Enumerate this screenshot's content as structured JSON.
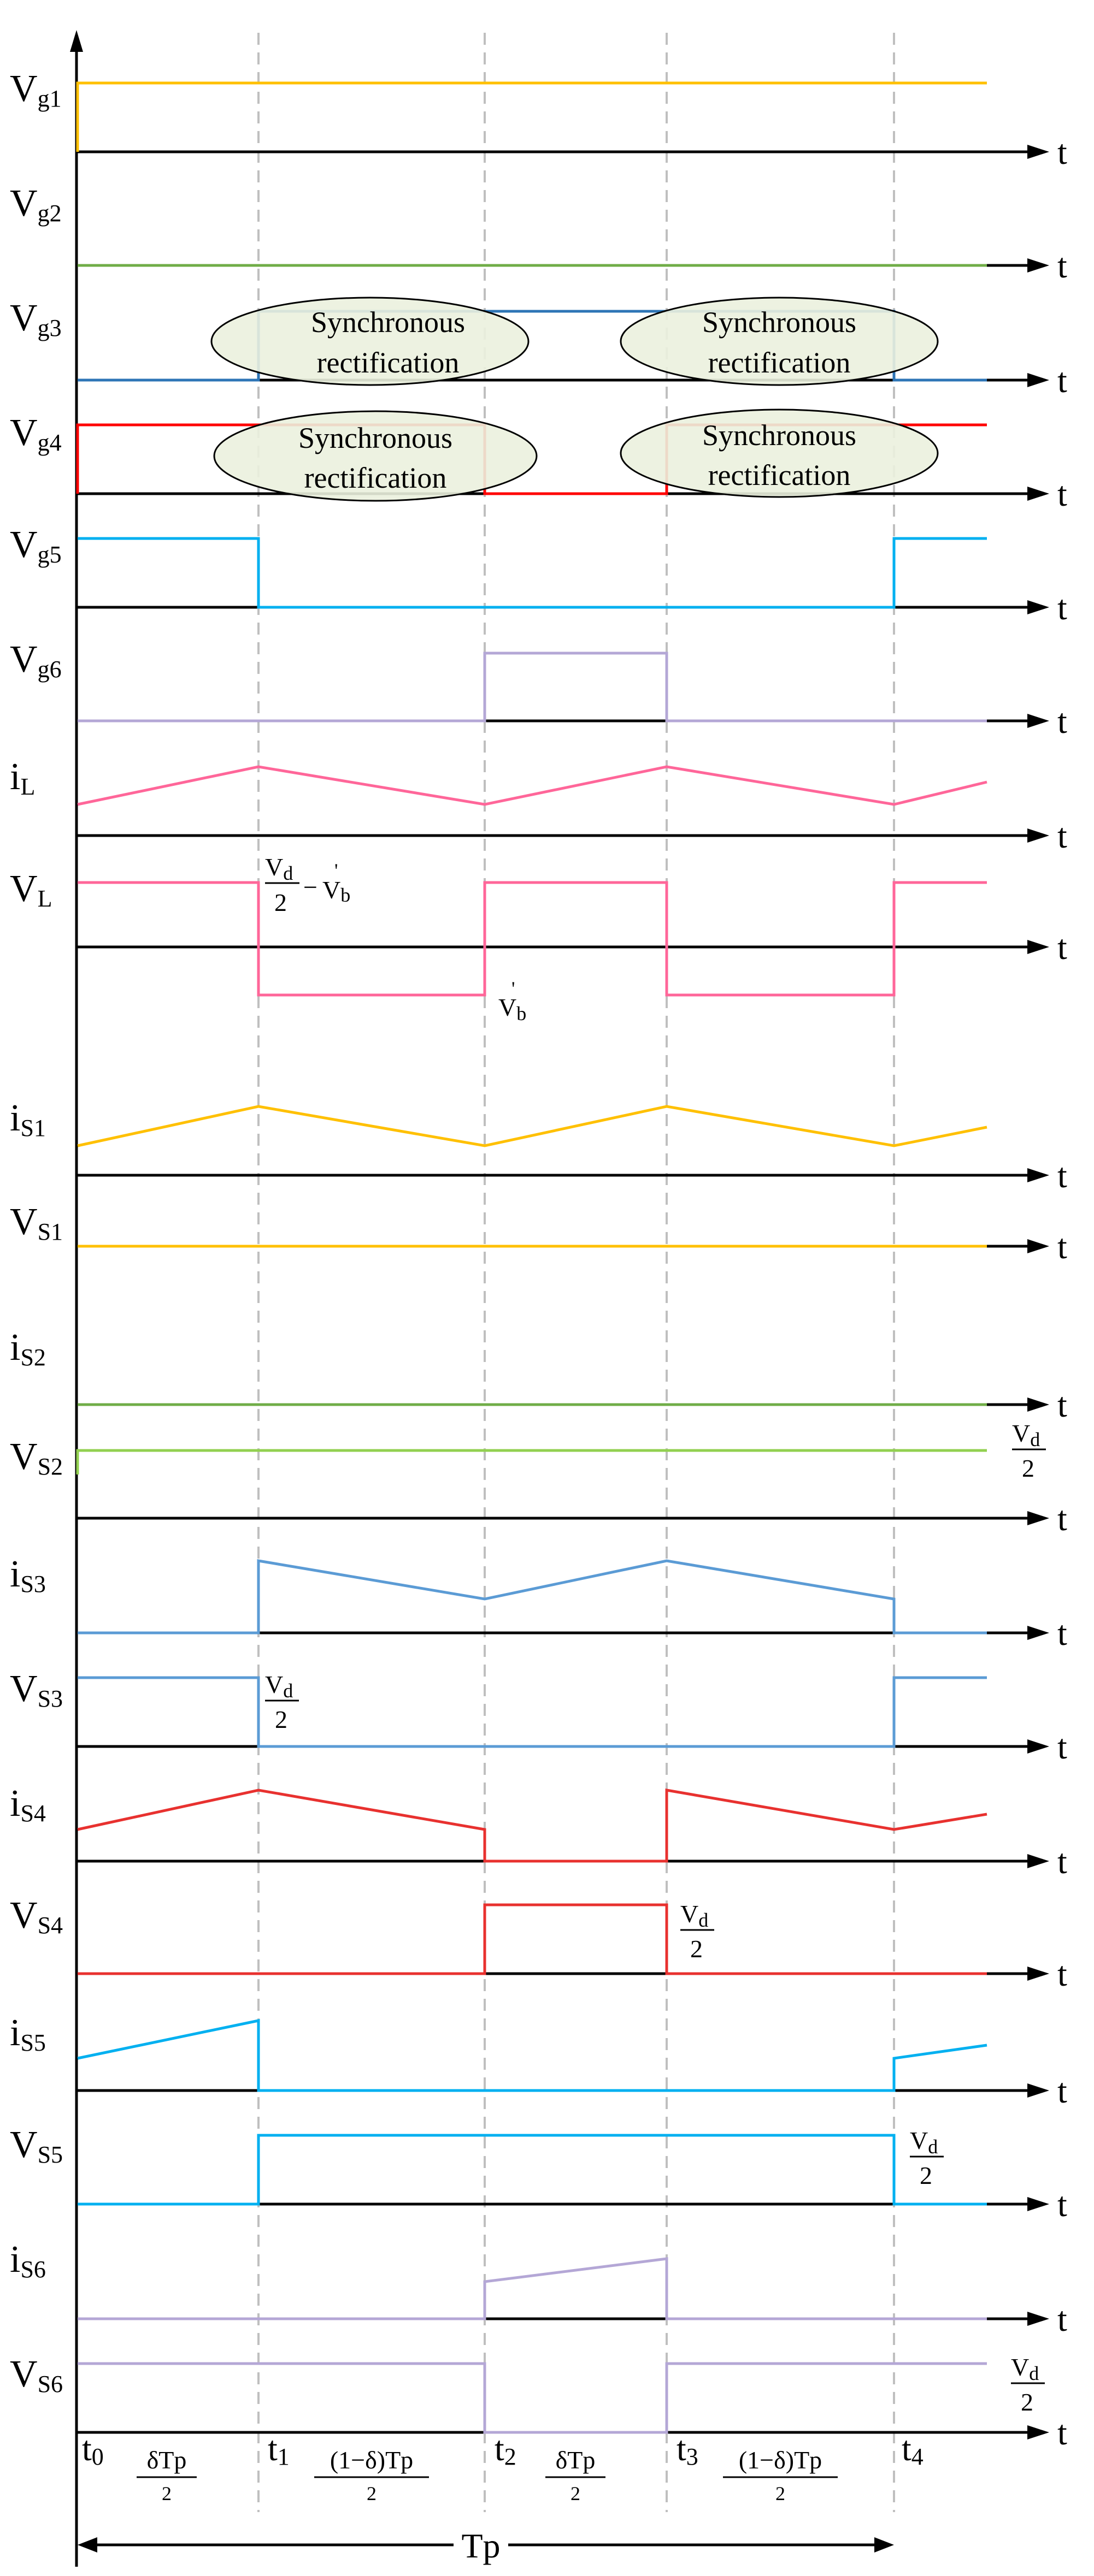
{
  "signals": [
    {
      "id": "vg1",
      "label_main": "V",
      "label_sub": "g1",
      "color": "#FFC000"
    },
    {
      "id": "vg2",
      "label_main": "V",
      "label_sub": "g2",
      "color": "#70AD47"
    },
    {
      "id": "vg3",
      "label_main": "V",
      "label_sub": "g3",
      "color": "#2E75B6"
    },
    {
      "id": "vg4",
      "label_main": "V",
      "label_sub": "g4",
      "color": "#FF0000"
    },
    {
      "id": "vg5",
      "label_main": "V",
      "label_sub": "g5",
      "color": "#00B0F0"
    },
    {
      "id": "vg6",
      "label_main": "V",
      "label_sub": "g6",
      "color": "#B4A7D6"
    },
    {
      "id": "il",
      "label_main": "i",
      "label_sub": "L",
      "color": "#FF6699"
    },
    {
      "id": "vl",
      "label_main": "V",
      "label_sub": "L",
      "color": "#FF6699"
    },
    {
      "id": "is1",
      "label_main": "i",
      "label_sub": "S1",
      "color": "#FFC000"
    },
    {
      "id": "vs1",
      "label_main": "V",
      "label_sub": "S1",
      "color": "#FFC000"
    },
    {
      "id": "is2",
      "label_main": "i",
      "label_sub": "S2",
      "color": "#70AD47"
    },
    {
      "id": "vs2",
      "label_main": "V",
      "label_sub": "S2",
      "color": "#92D050"
    },
    {
      "id": "is3",
      "label_main": "i",
      "label_sub": "S3",
      "color": "#5B9BD5"
    },
    {
      "id": "vs3",
      "label_main": "V",
      "label_sub": "S3",
      "color": "#5B9BD5"
    },
    {
      "id": "is4",
      "label_main": "i",
      "label_sub": "S4",
      "color": "#E8312F"
    },
    {
      "id": "vs4",
      "label_main": "V",
      "label_sub": "S4",
      "color": "#E8312F"
    },
    {
      "id": "is5",
      "label_main": "i",
      "label_sub": "S5",
      "color": "#00B0F0"
    },
    {
      "id": "vs5",
      "label_main": "V",
      "label_sub": "S5",
      "color": "#00B0F0"
    },
    {
      "id": "is6",
      "label_main": "i",
      "label_sub": "S6",
      "color": "#B4A7D6"
    },
    {
      "id": "vs6",
      "label_main": "V",
      "label_sub": "S6",
      "color": "#B4A7D6"
    }
  ],
  "axis_label": "t",
  "ovals": [
    {
      "line1": "Synchronous",
      "line2": "rectification"
    },
    {
      "line1": "Synchronous",
      "line2": "rectification"
    },
    {
      "line1": "Synchronous",
      "line2": "rectification"
    },
    {
      "line1": "Synchronous",
      "line2": "rectification"
    }
  ],
  "time_marks": [
    {
      "main": "t",
      "sub": "0"
    },
    {
      "main": "t",
      "sub": "1"
    },
    {
      "main": "t",
      "sub": "2"
    },
    {
      "main": "t",
      "sub": "3"
    },
    {
      "main": "t",
      "sub": "4"
    }
  ],
  "intervals": [
    {
      "num": "δTp",
      "den": "2"
    },
    {
      "num": "(1−δ)Tp",
      "den": "2"
    },
    {
      "num": "δTp",
      "den": "2"
    },
    {
      "num": "(1−δ)Tp",
      "den": "2"
    }
  ],
  "period_label": "Tp",
  "annotations": {
    "vd": "V",
    "vd_sub": "d",
    "two": "2",
    "minus": "−",
    "vb": "V",
    "vb_sub": "b",
    "prime": "'"
  },
  "colors": {
    "axis": "#000000",
    "grid": "#BFBFBF",
    "oval_fill": "#EBF1DE",
    "oval_stroke": "#000000"
  }
}
